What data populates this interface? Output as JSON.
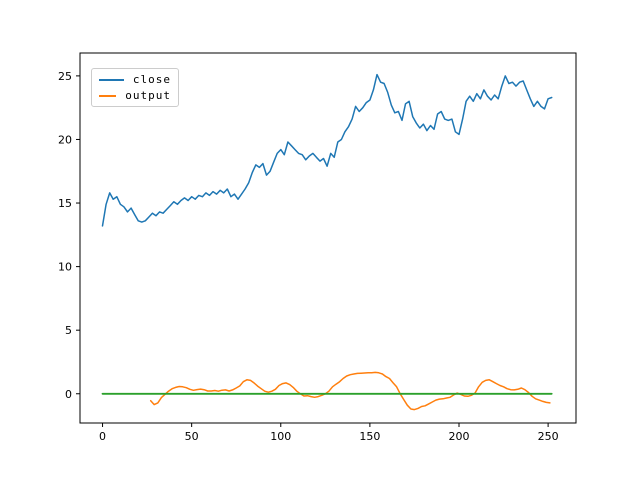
{
  "figure": {
    "background": "#ffffff",
    "legend": {
      "position": "upper left",
      "items": [
        {
          "label": "close",
          "color": "#1f77b4"
        },
        {
          "label": "output",
          "color": "#ff7f0e"
        }
      ]
    }
  },
  "chart_data": {
    "type": "line",
    "title": "",
    "xlabel": "",
    "ylabel": "",
    "grid": false,
    "xlim": [
      -12.65,
      265.65
    ],
    "ylim": [
      -2.3,
      26.8
    ],
    "xticks": [
      0,
      50,
      100,
      150,
      200,
      250
    ],
    "yticks": [
      0,
      5,
      10,
      15,
      20,
      25
    ],
    "tick_color": "#000000",
    "spine_color": "#000000",
    "series": [
      {
        "name": "close",
        "color": "#1f77b4",
        "width": 1.5,
        "x": [
          0,
          2,
          4,
          6,
          8,
          10,
          12,
          14,
          16,
          18,
          20,
          22,
          24,
          26,
          28,
          30,
          32,
          34,
          36,
          38,
          40,
          42,
          44,
          46,
          48,
          50,
          52,
          54,
          56,
          58,
          60,
          62,
          64,
          66,
          68,
          70,
          72,
          74,
          76,
          78,
          80,
          82,
          84,
          86,
          88,
          90,
          92,
          94,
          96,
          98,
          100,
          102,
          104,
          106,
          108,
          110,
          112,
          114,
          116,
          118,
          120,
          122,
          124,
          126,
          128,
          130,
          132,
          134,
          136,
          138,
          140,
          142,
          144,
          146,
          148,
          150,
          152,
          154,
          156,
          158,
          160,
          162,
          164,
          166,
          168,
          170,
          172,
          174,
          176,
          178,
          180,
          182,
          184,
          186,
          188,
          190,
          192,
          194,
          196,
          198,
          200,
          202,
          204,
          206,
          208,
          210,
          212,
          214,
          216,
          218,
          220,
          222,
          224,
          226,
          228,
          230,
          232,
          234,
          236,
          238,
          240,
          242,
          244,
          246,
          248,
          250,
          252
        ],
        "values": [
          13.2,
          14.9,
          15.8,
          15.3,
          15.5,
          14.9,
          14.7,
          14.3,
          14.6,
          14.1,
          13.6,
          13.5,
          13.6,
          13.9,
          14.2,
          14.0,
          14.3,
          14.2,
          14.5,
          14.8,
          15.1,
          14.9,
          15.2,
          15.4,
          15.2,
          15.5,
          15.3,
          15.6,
          15.5,
          15.8,
          15.6,
          15.9,
          15.7,
          16.0,
          15.8,
          16.1,
          15.5,
          15.7,
          15.3,
          15.7,
          16.1,
          16.6,
          17.4,
          18.0,
          17.8,
          18.1,
          17.2,
          17.5,
          18.2,
          18.9,
          19.2,
          18.8,
          19.8,
          19.5,
          19.2,
          18.9,
          18.8,
          18.4,
          18.7,
          18.9,
          18.6,
          18.3,
          18.5,
          17.9,
          18.9,
          18.6,
          19.8,
          20.0,
          20.6,
          21.0,
          21.6,
          22.6,
          22.2,
          22.5,
          22.9,
          23.1,
          23.9,
          25.1,
          24.5,
          24.4,
          23.7,
          22.7,
          22.1,
          22.2,
          21.5,
          22.8,
          23.0,
          21.8,
          21.3,
          20.9,
          21.2,
          20.7,
          21.1,
          20.8,
          22.0,
          22.2,
          21.6,
          21.5,
          21.6,
          20.6,
          20.4,
          21.6,
          23.0,
          23.4,
          23.0,
          23.6,
          23.2,
          23.9,
          23.4,
          23.1,
          23.5,
          23.2,
          24.2,
          25.0,
          24.4,
          24.5,
          24.2,
          24.5,
          24.6,
          23.9,
          23.2,
          22.6,
          23.0,
          22.6,
          22.4,
          23.2,
          23.3
        ]
      },
      {
        "name": "output",
        "color": "#ff7f0e",
        "width": 1.5,
        "x": [
          27,
          29,
          31,
          33,
          35,
          37,
          39,
          41,
          43,
          45,
          47,
          49,
          51,
          53,
          55,
          57,
          59,
          61,
          63,
          65,
          67,
          69,
          71,
          73,
          75,
          77,
          79,
          81,
          83,
          85,
          87,
          89,
          91,
          93,
          95,
          97,
          99,
          101,
          103,
          105,
          107,
          109,
          111,
          113,
          115,
          117,
          119,
          121,
          123,
          125,
          127,
          129,
          131,
          133,
          135,
          137,
          139,
          141,
          143,
          145,
          147,
          149,
          151,
          153,
          155,
          157,
          159,
          161,
          163,
          165,
          167,
          169,
          171,
          173,
          175,
          177,
          179,
          181,
          183,
          185,
          187,
          189,
          191,
          193,
          195,
          197,
          199,
          201,
          203,
          205,
          207,
          209,
          211,
          213,
          215,
          217,
          219,
          221,
          223,
          225,
          227,
          229,
          231,
          233,
          235,
          237,
          239,
          241,
          243,
          245,
          247,
          249,
          251
        ],
        "values": [
          -0.55,
          -0.85,
          -0.72,
          -0.3,
          -0.05,
          0.2,
          0.4,
          0.5,
          0.57,
          0.55,
          0.48,
          0.35,
          0.27,
          0.33,
          0.37,
          0.32,
          0.22,
          0.22,
          0.26,
          0.2,
          0.28,
          0.3,
          0.22,
          0.3,
          0.45,
          0.62,
          0.95,
          1.1,
          1.05,
          0.85,
          0.6,
          0.4,
          0.2,
          0.12,
          0.2,
          0.35,
          0.65,
          0.8,
          0.85,
          0.72,
          0.5,
          0.2,
          0.0,
          -0.18,
          -0.15,
          -0.22,
          -0.28,
          -0.22,
          -0.12,
          0.0,
          0.2,
          0.55,
          0.75,
          0.95,
          1.2,
          1.4,
          1.5,
          1.55,
          1.6,
          1.62,
          1.63,
          1.65,
          1.65,
          1.68,
          1.65,
          1.55,
          1.35,
          1.2,
          0.85,
          0.55,
          0.0,
          -0.45,
          -0.9,
          -1.2,
          -1.25,
          -1.15,
          -1.0,
          -0.95,
          -0.8,
          -0.65,
          -0.5,
          -0.42,
          -0.4,
          -0.33,
          -0.28,
          -0.1,
          0.05,
          -0.05,
          -0.18,
          -0.2,
          -0.12,
          0.05,
          0.55,
          0.9,
          1.05,
          1.1,
          0.95,
          0.8,
          0.65,
          0.55,
          0.4,
          0.32,
          0.3,
          0.35,
          0.45,
          0.32,
          0.1,
          -0.2,
          -0.4,
          -0.5,
          -0.6,
          -0.68,
          -0.72
        ]
      },
      {
        "name": "zero-line",
        "color": "#2ca02c",
        "width": 1.8,
        "x": [
          0,
          252
        ],
        "values": [
          0,
          0
        ]
      }
    ]
  }
}
